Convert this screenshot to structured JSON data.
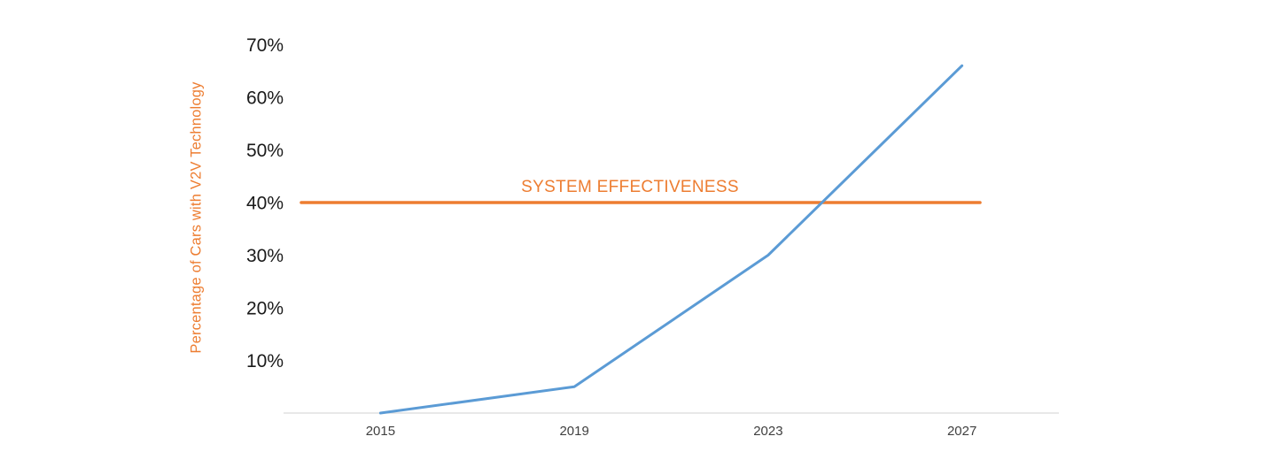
{
  "page": {
    "background": "#ffffff"
  },
  "chart_data": {
    "type": "line",
    "title": "",
    "xlabel": "",
    "ylabel": "Percentage of Cars with V2V Technology",
    "x_labels": [
      "2015",
      "2019",
      "2023",
      "2027"
    ],
    "series": [
      {
        "name": "Percentage of Cars with V2V Technology",
        "values": [
          0,
          5,
          30,
          66
        ],
        "color": "#5B9BD5"
      }
    ],
    "threshold": {
      "label": "SYSTEM EFFECTIVENESS",
      "value": 40,
      "color": "#ED7D31"
    },
    "ytick_values": [
      10,
      20,
      30,
      40,
      50,
      60,
      70
    ],
    "ytick_labels": [
      "10%",
      "20%",
      "30%",
      "40%",
      "50%",
      "60%",
      "70%"
    ],
    "ylim": [
      0,
      75
    ],
    "grid": false,
    "legend": "none",
    "colors": {
      "series": "#5B9BD5",
      "threshold": "#ED7D31",
      "axis_line": "#D9D9D9",
      "ytick_text": "#1a1a1a",
      "xtick_text": "#404040"
    }
  }
}
